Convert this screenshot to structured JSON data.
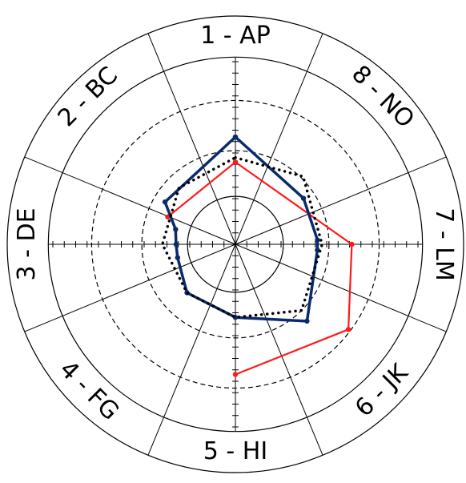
{
  "chart_data": {
    "type": "radar",
    "categories": [
      "1 - AP",
      "2 - BC",
      "3 - DE",
      "4 - FG",
      "5 - HI",
      "6 - JK",
      "7 - LM",
      "8 - NO"
    ],
    "r_max": 10,
    "rings": [
      {
        "r": 2.1,
        "style": "solid"
      },
      {
        "r": 4.1,
        "style": "dashed"
      },
      {
        "r": 6.3,
        "style": "dashed"
      },
      {
        "r": 8.2,
        "style": "solid"
      },
      {
        "r": 10,
        "style": "solid"
      }
    ],
    "series": [
      {
        "color": "#ff1a1a",
        "line": "solid",
        "markers": true,
        "points": [
          {
            "angle": 90,
            "r": 3.6
          },
          {
            "angle": 158,
            "r": 3.2
          },
          {
            "angle": 90,
            "r": 3.6
          },
          {
            "angle": 0,
            "r": 5.1
          },
          {
            "angle": -37,
            "r": 6.2
          },
          {
            "angle": -90,
            "r": 5.7
          }
        ]
      },
      {
        "color": "#0b2a6b",
        "line": "solid",
        "markers": true,
        "points": [
          {
            "angle": 90,
            "r": 4.7
          },
          {
            "angle": 34,
            "r": 3.6
          },
          {
            "angle": 3,
            "r": 3.6
          },
          {
            "angle": -4,
            "r": 3.6
          },
          {
            "angle": -47,
            "r": 4.6
          },
          {
            "angle": -90,
            "r": 3.2
          },
          {
            "angle": -135,
            "r": 3.0
          },
          {
            "angle": -167,
            "r": 2.6
          },
          {
            "angle": 180,
            "r": 2.6
          },
          {
            "angle": 166,
            "r": 2.7
          },
          {
            "angle": 149,
            "r": 3.6
          },
          {
            "angle": 90,
            "r": 4.7
          }
        ]
      },
      {
        "color": "#000000",
        "line": "dotted",
        "markers": false,
        "points": [
          {
            "angle": 90,
            "r": 3.8
          },
          {
            "angle": 45,
            "r": 4.2
          },
          {
            "angle": 0,
            "r": 3.8
          },
          {
            "angle": -45,
            "r": 4.1
          },
          {
            "angle": -90,
            "r": 3.2
          },
          {
            "angle": -135,
            "r": 3.0
          },
          {
            "angle": 180,
            "r": 3.2
          },
          {
            "angle": 135,
            "r": 3.5
          },
          {
            "angle": 90,
            "r": 3.8
          }
        ]
      }
    ],
    "grid": true
  }
}
